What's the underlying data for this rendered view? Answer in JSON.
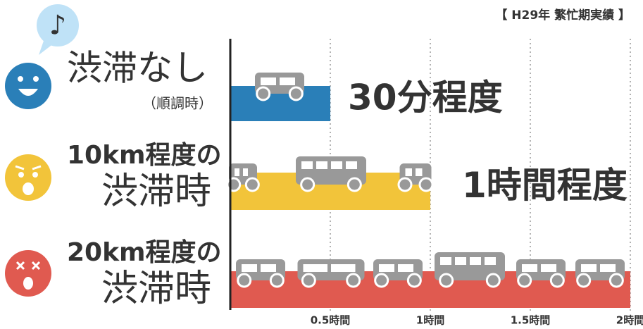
{
  "chart_data": {
    "type": "hbar",
    "note": "【 H29年 繁忙期実績 】",
    "categories": [
      [
        "渋滞なし",
        "（順調時）"
      ],
      [
        "10km程度の",
        "渋滞時"
      ],
      [
        "20km程度の",
        "渋滞時"
      ]
    ],
    "values": [
      0.5,
      1,
      2
    ],
    "value_labels": [
      "30分程度",
      "1時間程度",
      null
    ],
    "colors": [
      "#2a7fb8",
      "#f2c43a",
      "#e05a50"
    ],
    "xlim": [
      0,
      2
    ],
    "xticks": [
      {
        "value": 0.5,
        "label": "0.5時間"
      },
      {
        "value": 1,
        "label": "1時間"
      },
      {
        "value": 1.5,
        "label": "1.5時間"
      },
      {
        "value": 2,
        "label": "2時間"
      }
    ],
    "grid": true
  }
}
